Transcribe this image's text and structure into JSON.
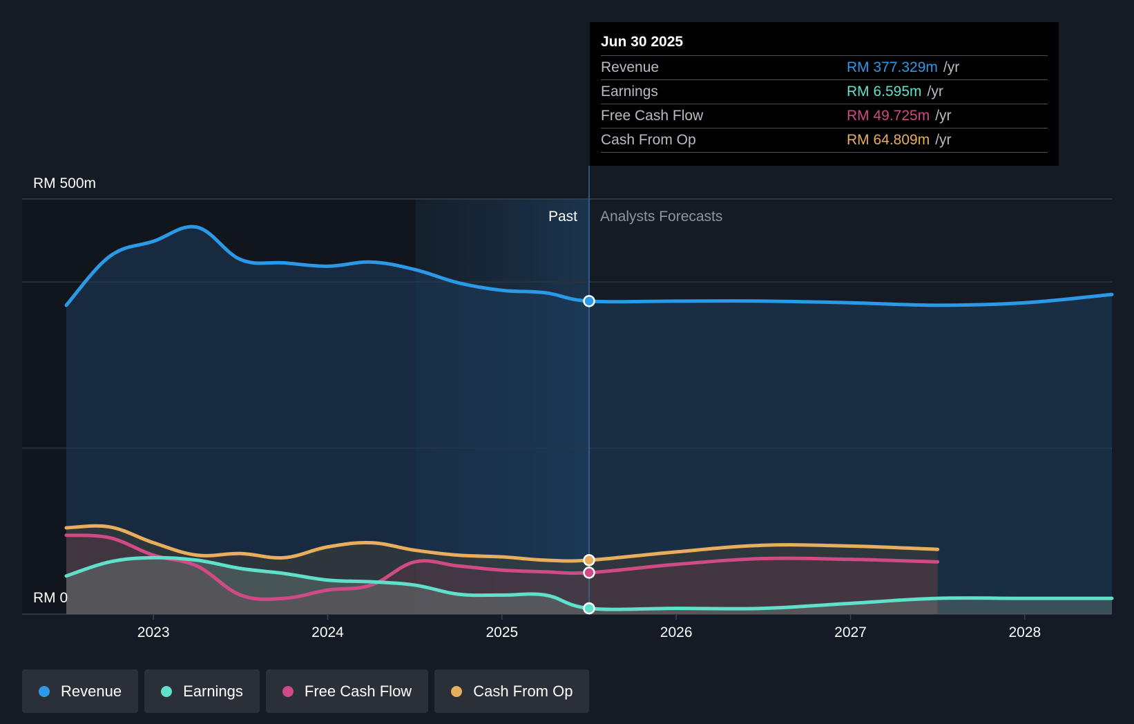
{
  "colors": {
    "revenue": "#2a9ae8",
    "earnings": "#5fe0cb",
    "free_cash_flow": "#d04a85",
    "cash_from_op": "#e8ae5c",
    "background": "#151b24",
    "grid": "#2c333d"
  },
  "tooltip": {
    "date": "Jun 30 2025",
    "rows": [
      {
        "label": "Revenue",
        "value": "RM 377.329m",
        "unit": "/yr"
      },
      {
        "label": "Earnings",
        "value": "RM 6.595m",
        "unit": "/yr"
      },
      {
        "label": "Free Cash Flow",
        "value": "RM 49.725m",
        "unit": "/yr"
      },
      {
        "label": "Cash From Op",
        "value": "RM 64.809m",
        "unit": "/yr"
      }
    ]
  },
  "legend": [
    {
      "label": "Revenue"
    },
    {
      "label": "Earnings"
    },
    {
      "label": "Free Cash Flow"
    },
    {
      "label": "Cash From Op"
    }
  ],
  "chart_data": {
    "type": "line",
    "title": "",
    "ylabel": "",
    "ylim": [
      0,
      500
    ],
    "y_ticks": [
      "RM 0",
      "RM 500m"
    ],
    "x_ticks": [
      "2023",
      "2024",
      "2025",
      "2026",
      "2027",
      "2028"
    ],
    "xlim": [
      2022.5,
      2028.5
    ],
    "divider_x": 2025.5,
    "past_label": "Past",
    "forecast_label": "Analysts Forecasts",
    "series": [
      {
        "name": "Revenue",
        "key": "revenue",
        "x": [
          2022.5,
          2022.75,
          2023.0,
          2023.25,
          2023.5,
          2023.75,
          2024.0,
          2024.25,
          2024.5,
          2024.75,
          2025.0,
          2025.25,
          2025.5,
          2026.0,
          2026.5,
          2027.0,
          2027.5,
          2028.0,
          2028.5
        ],
        "values": [
          372,
          431,
          449,
          466,
          427,
          423,
          419,
          424,
          415,
          399,
          390,
          387,
          377,
          377,
          377,
          375,
          372,
          375,
          385
        ],
        "highlight_index": 12
      },
      {
        "name": "Earnings",
        "key": "earnings",
        "x": [
          2022.5,
          2022.75,
          2023.0,
          2023.25,
          2023.5,
          2023.75,
          2024.0,
          2024.25,
          2024.5,
          2024.75,
          2025.0,
          2025.25,
          2025.5,
          2026.0,
          2026.5,
          2027.0,
          2027.5,
          2028.0,
          2028.5
        ],
        "values": [
          46,
          63,
          68,
          65,
          55,
          49,
          41,
          39,
          35,
          24,
          23,
          23,
          7,
          7,
          7,
          13,
          19,
          19,
          19
        ],
        "highlight_index": 12
      },
      {
        "name": "Free Cash Flow",
        "key": "free_cash_flow",
        "x": [
          2022.5,
          2022.75,
          2023.0,
          2023.25,
          2023.5,
          2023.75,
          2024.0,
          2024.25,
          2024.5,
          2024.75,
          2025.0,
          2025.25,
          2025.5,
          2026.0,
          2026.5,
          2027.0,
          2027.5
        ],
        "values": [
          95,
          92,
          71,
          58,
          23,
          19,
          29,
          35,
          63,
          58,
          53,
          51,
          50,
          60,
          67,
          66,
          63
        ],
        "highlight_index": 12
      },
      {
        "name": "Cash From Op",
        "key": "cash_from_op",
        "x": [
          2022.5,
          2022.75,
          2023.0,
          2023.25,
          2023.5,
          2023.75,
          2024.0,
          2024.25,
          2024.5,
          2024.75,
          2025.0,
          2025.25,
          2025.5,
          2026.0,
          2026.5,
          2027.0,
          2027.5
        ],
        "values": [
          104,
          105,
          86,
          71,
          73,
          68,
          81,
          86,
          77,
          71,
          69,
          65,
          65,
          75,
          83,
          82,
          78
        ],
        "highlight_index": 12
      }
    ]
  }
}
